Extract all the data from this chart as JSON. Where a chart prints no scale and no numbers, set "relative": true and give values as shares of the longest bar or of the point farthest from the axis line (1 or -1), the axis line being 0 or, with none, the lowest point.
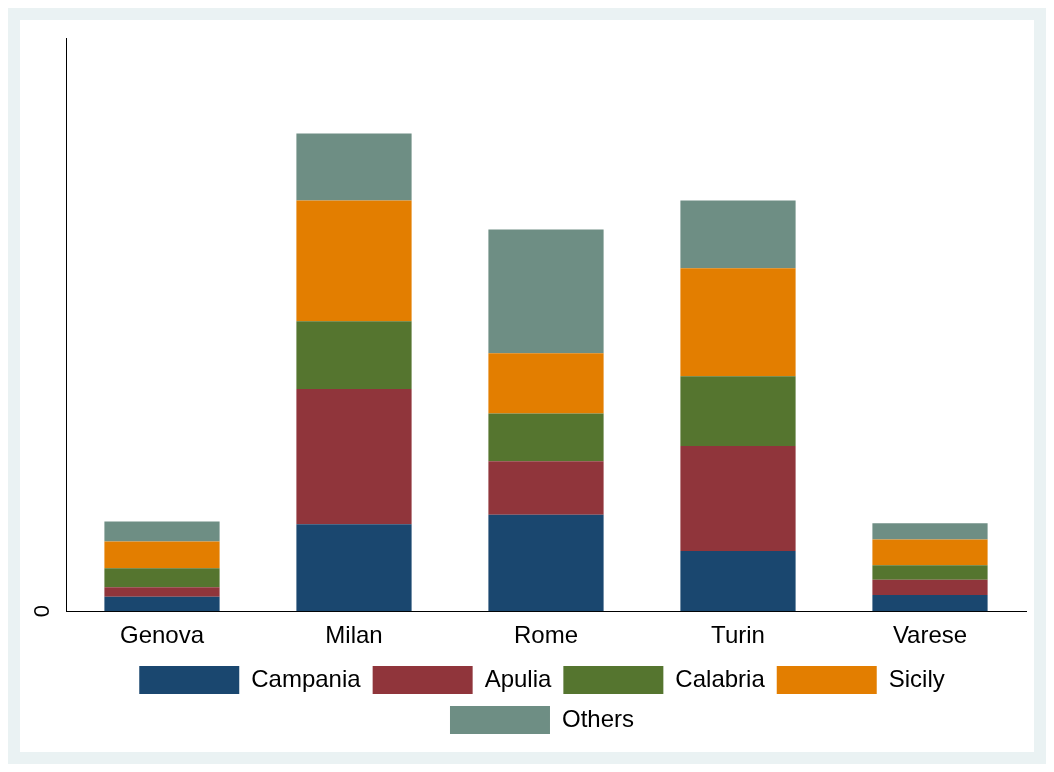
{
  "chart_data": {
    "type": "bar",
    "stacked": true,
    "relative": true,
    "categories": [
      "Genova",
      "Milan",
      "Rome",
      "Turin",
      "Varese"
    ],
    "series": [
      {
        "name": "Campania",
        "color": "#1a476f",
        "values": [
          0.03,
          0.182,
          0.202,
          0.126,
          0.034
        ]
      },
      {
        "name": "Apulia",
        "color": "#90353b",
        "values": [
          0.02,
          0.283,
          0.112,
          0.22,
          0.032
        ]
      },
      {
        "name": "Calabria",
        "color": "#55752f",
        "values": [
          0.04,
          0.142,
          0.1,
          0.146,
          0.03
        ]
      },
      {
        "name": "Sicily",
        "color": "#e37e00",
        "values": [
          0.056,
          0.253,
          0.126,
          0.226,
          0.054
        ]
      },
      {
        "name": "Others",
        "color": "#6e8e84",
        "values": [
          0.042,
          0.14,
          0.259,
          0.142,
          0.034
        ]
      }
    ],
    "annotations": [
      "0"
    ],
    "legend": "bottom"
  }
}
